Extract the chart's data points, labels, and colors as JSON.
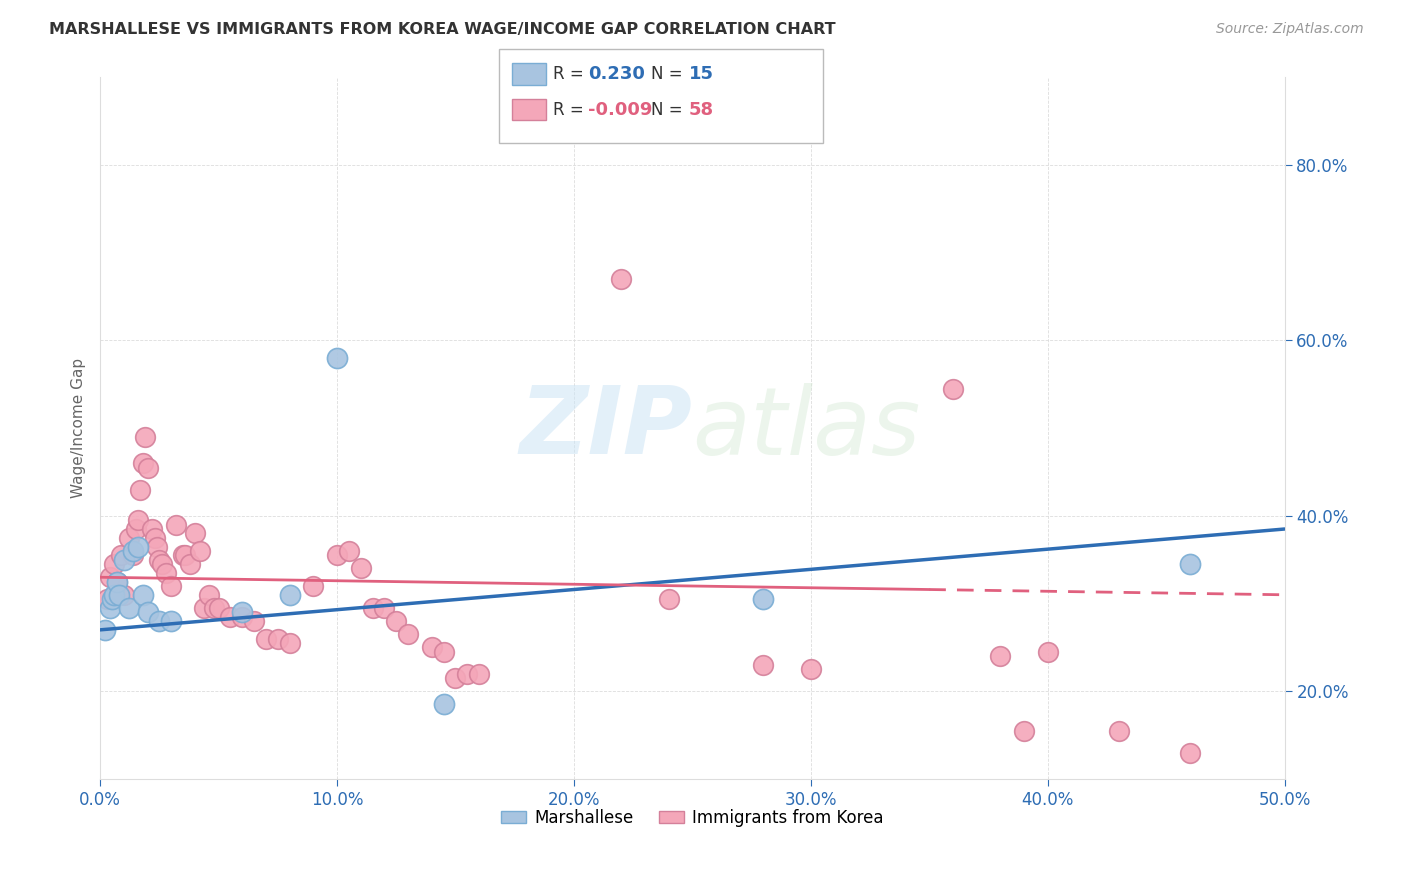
{
  "title": "MARSHALLESE VS IMMIGRANTS FROM KOREA WAGE/INCOME GAP CORRELATION CHART",
  "source": "Source: ZipAtlas.com",
  "ylabel": "Wage/Income Gap",
  "xlim": [
    0.0,
    0.5
  ],
  "ylim": [
    0.1,
    0.9
  ],
  "xticks": [
    0.0,
    0.1,
    0.2,
    0.3,
    0.4,
    0.5
  ],
  "yticks": [
    0.2,
    0.4,
    0.6,
    0.8
  ],
  "xticklabels": [
    "0.0%",
    "10.0%",
    "20.0%",
    "30.0%",
    "40.0%",
    "50.0%"
  ],
  "yticklabels": [
    "20.0%",
    "40.0%",
    "60.0%",
    "80.0%"
  ],
  "blue_color": "#a8c4e0",
  "pink_color": "#f4a7b9",
  "blue_line_color": "#2e6db4",
  "pink_line_color": "#e0607e",
  "blue_edge": "#7aadd4",
  "pink_edge": "#d4809a",
  "tick_color": "#2e6db4",
  "watermark_color": "#cce4f5",
  "background_color": "#ffffff",
  "grid_color": "#dddddd",
  "blue_points": [
    [
      0.002,
      0.27
    ],
    [
      0.004,
      0.295
    ],
    [
      0.005,
      0.305
    ],
    [
      0.006,
      0.31
    ],
    [
      0.007,
      0.325
    ],
    [
      0.008,
      0.31
    ],
    [
      0.01,
      0.35
    ],
    [
      0.012,
      0.295
    ],
    [
      0.014,
      0.36
    ],
    [
      0.016,
      0.365
    ],
    [
      0.018,
      0.31
    ],
    [
      0.02,
      0.29
    ],
    [
      0.025,
      0.28
    ],
    [
      0.03,
      0.28
    ],
    [
      0.06,
      0.29
    ],
    [
      0.08,
      0.31
    ],
    [
      0.1,
      0.58
    ],
    [
      0.145,
      0.185
    ],
    [
      0.28,
      0.305
    ],
    [
      0.46,
      0.345
    ]
  ],
  "pink_points": [
    [
      0.003,
      0.305
    ],
    [
      0.004,
      0.33
    ],
    [
      0.006,
      0.345
    ],
    [
      0.007,
      0.325
    ],
    [
      0.009,
      0.355
    ],
    [
      0.01,
      0.31
    ],
    [
      0.012,
      0.375
    ],
    [
      0.014,
      0.355
    ],
    [
      0.015,
      0.385
    ],
    [
      0.016,
      0.395
    ],
    [
      0.017,
      0.43
    ],
    [
      0.018,
      0.46
    ],
    [
      0.019,
      0.49
    ],
    [
      0.02,
      0.455
    ],
    [
      0.022,
      0.385
    ],
    [
      0.023,
      0.375
    ],
    [
      0.024,
      0.365
    ],
    [
      0.025,
      0.35
    ],
    [
      0.026,
      0.345
    ],
    [
      0.028,
      0.335
    ],
    [
      0.03,
      0.32
    ],
    [
      0.032,
      0.39
    ],
    [
      0.035,
      0.355
    ],
    [
      0.036,
      0.355
    ],
    [
      0.038,
      0.345
    ],
    [
      0.04,
      0.38
    ],
    [
      0.042,
      0.36
    ],
    [
      0.044,
      0.295
    ],
    [
      0.046,
      0.31
    ],
    [
      0.048,
      0.295
    ],
    [
      0.05,
      0.295
    ],
    [
      0.055,
      0.285
    ],
    [
      0.06,
      0.285
    ],
    [
      0.065,
      0.28
    ],
    [
      0.07,
      0.26
    ],
    [
      0.075,
      0.26
    ],
    [
      0.08,
      0.255
    ],
    [
      0.09,
      0.32
    ],
    [
      0.1,
      0.355
    ],
    [
      0.105,
      0.36
    ],
    [
      0.11,
      0.34
    ],
    [
      0.115,
      0.295
    ],
    [
      0.12,
      0.295
    ],
    [
      0.125,
      0.28
    ],
    [
      0.13,
      0.265
    ],
    [
      0.14,
      0.25
    ],
    [
      0.145,
      0.245
    ],
    [
      0.15,
      0.215
    ],
    [
      0.155,
      0.22
    ],
    [
      0.16,
      0.22
    ],
    [
      0.22,
      0.67
    ],
    [
      0.24,
      0.305
    ],
    [
      0.28,
      0.23
    ],
    [
      0.3,
      0.225
    ],
    [
      0.36,
      0.545
    ],
    [
      0.38,
      0.24
    ],
    [
      0.39,
      0.155
    ],
    [
      0.4,
      0.245
    ],
    [
      0.43,
      0.155
    ],
    [
      0.46,
      0.13
    ]
  ],
  "blue_trend": [
    0.0,
    0.5,
    0.27,
    0.385
  ],
  "pink_trend": [
    0.0,
    0.5,
    0.33,
    0.31
  ]
}
